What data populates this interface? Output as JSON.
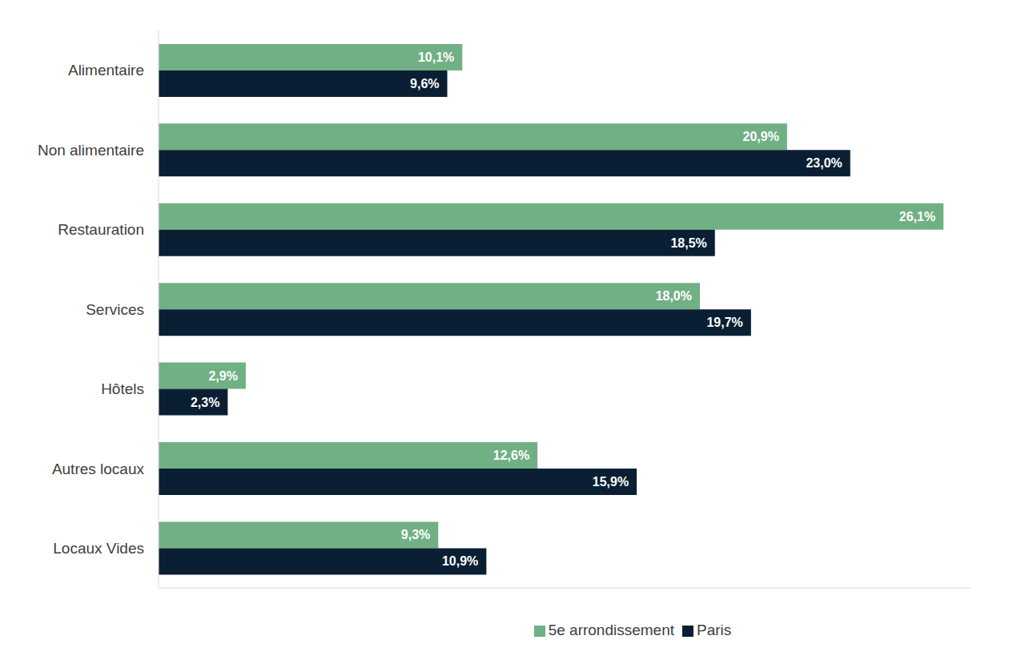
{
  "chart_data": {
    "type": "bar",
    "orientation": "horizontal",
    "categories": [
      "Alimentaire",
      "Non alimentaire",
      "Restauration",
      "Services",
      "Hôtels",
      "Autres locaux",
      "Locaux Vides"
    ],
    "series": [
      {
        "name": "5e arrondissement",
        "color": "#71b084",
        "values": [
          10.1,
          20.9,
          26.1,
          18.0,
          2.9,
          12.6,
          9.3
        ],
        "value_labels": [
          "10,1%",
          "20,9%",
          "26,1%",
          "18,0%",
          "2,9%",
          "12,6%",
          "9,3%"
        ]
      },
      {
        "name": "Paris",
        "color": "#0a1f33",
        "values": [
          9.6,
          23.0,
          18.5,
          19.7,
          2.3,
          15.9,
          10.9
        ],
        "value_labels": [
          "9,6%",
          "23,0%",
          "18,5%",
          "19,7%",
          "2,3%",
          "15,9%",
          "10,9%"
        ]
      }
    ],
    "xlim": [
      0,
      27
    ],
    "data_labels": true,
    "tick_labels": "y",
    "legend": "bottom",
    "grid": false
  }
}
